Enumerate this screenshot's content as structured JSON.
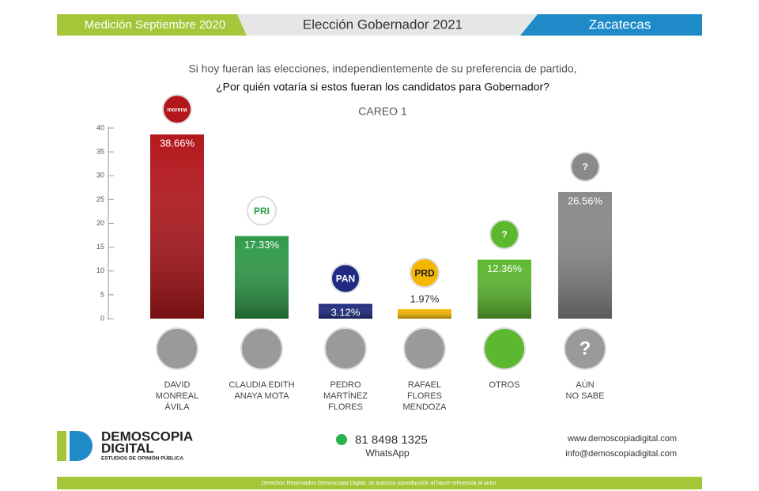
{
  "header": {
    "measurement": "Medición Septiembre 2020",
    "title": "Elección Gobernador 2021",
    "state": "Zacatecas"
  },
  "question": {
    "line1": "Si hoy fueran las elecciones, independientemente de su preferencia de partido,",
    "line2": "¿Por quién votaría si estos fueran los candidatos para Gobernador?"
  },
  "chart_data": {
    "type": "bar",
    "title": "CAREO 1",
    "categories": [
      "DAVID\nMONREAL\nÁVILA",
      "CLAUDIA EDITH\nANAYA MOTA",
      "PEDRO\nMARTÍNEZ\nFLORES",
      "RAFAEL\nFLORES\nMENDOZA",
      "OTROS",
      "AÚN\nNO SABE"
    ],
    "values": [
      38.66,
      17.33,
      3.12,
      1.97,
      12.36,
      26.56
    ],
    "value_labels": [
      "38.66%",
      "17.33%",
      "3.12%",
      "1.97%",
      "12.36%",
      "26.56%"
    ],
    "colors": [
      "#b3171c",
      "#2f9a48",
      "#1f2a80",
      "#f5b700",
      "#5cb82e",
      "#8a8a8a"
    ],
    "party_logos": [
      "morena",
      "PRI",
      "PAN",
      "PRD",
      "?",
      "?"
    ],
    "ylim": [
      0,
      40
    ],
    "yticks": [
      0,
      5,
      10,
      15,
      20,
      25,
      30,
      35,
      40
    ]
  },
  "footer": {
    "brand": "DEMOSCOPIA",
    "brand2": "DIGITAL",
    "tagline": "ESTUDIOS DE OPINIÓN PÚBLICA",
    "phone": "81 8498 1325",
    "phone_label": "WhatsApp",
    "web": "www.demoscopiadigital.com",
    "email": "info@demoscopiadigital.com",
    "rights": "Derechos Reservados Demoscopia Digital, se autoriza reproducción al hacer referencia al autor."
  }
}
